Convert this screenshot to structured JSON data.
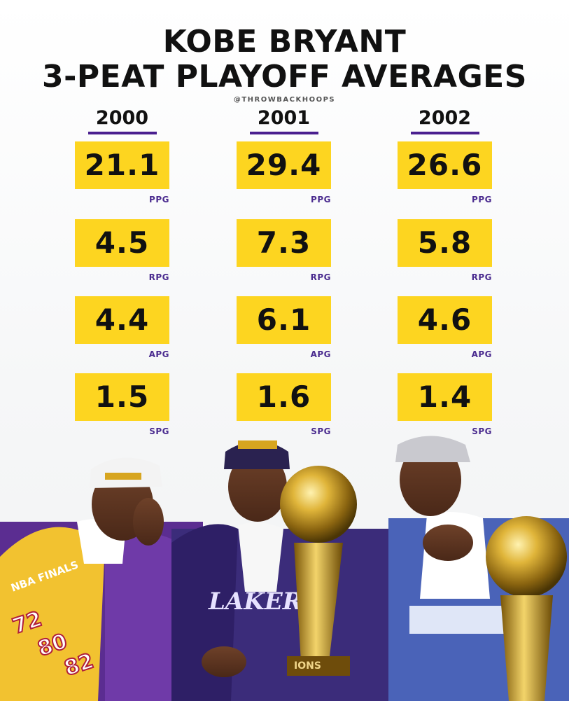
{
  "header": {
    "title_line1": "KOBE BRYANT",
    "title_line2": "3-PEAT PLAYOFF AVERAGES",
    "credit": "@THROWBACKHOOPS"
  },
  "colors": {
    "box_yellow": "#fdd520",
    "underline_purple": "#4a1f8f",
    "label_purple": "#4a2b8f",
    "text_black": "#111111"
  },
  "columns": [
    {
      "year": "2000",
      "stats": [
        {
          "value": "21.1",
          "label": "PPG"
        },
        {
          "value": "4.5",
          "label": "RPG"
        },
        {
          "value": "4.4",
          "label": "APG"
        },
        {
          "value": "1.5",
          "label": "SPG"
        }
      ]
    },
    {
      "year": "2001",
      "stats": [
        {
          "value": "29.4",
          "label": "PPG"
        },
        {
          "value": "7.3",
          "label": "RPG"
        },
        {
          "value": "6.1",
          "label": "APG"
        },
        {
          "value": "1.6",
          "label": "SPG"
        }
      ]
    },
    {
      "year": "2002",
      "stats": [
        {
          "value": "26.6",
          "label": "PPG"
        },
        {
          "value": "5.8",
          "label": "RPG"
        },
        {
          "value": "4.6",
          "label": "APG"
        },
        {
          "value": "1.4",
          "label": "SPG"
        }
      ]
    }
  ],
  "photos": {
    "jacket_numbers": [
      "72",
      "80",
      "82"
    ],
    "jacket_text_left": "NBA FINALS",
    "jacket_text_middle": "LAKERS",
    "trophy_plate": "IONS"
  }
}
